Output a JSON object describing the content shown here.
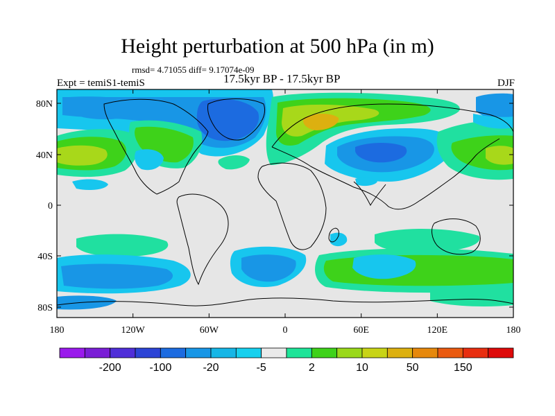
{
  "title": "Height perturbation at 500 hPa (in m)",
  "stats_line": "rmsd= 4.71055 diff= 9.17074e-09",
  "period": "17.5kyr BP - 17.5kyr BP",
  "experiment": "Expt = temiS1-temiS",
  "season": "DJF",
  "lat_ticks": [
    "80N",
    "40N",
    "0",
    "40S",
    "80S"
  ],
  "lon_ticks": [
    "180",
    "120W",
    "60W",
    "0",
    "60E",
    "120E",
    "180"
  ],
  "colorbar": {
    "colors": [
      "#9a1aec",
      "#7a1ed6",
      "#4f2ed8",
      "#2c44d6",
      "#1c6be0",
      "#1896e6",
      "#16b6e6",
      "#17d0ee",
      "#eaeaea",
      "#1ee498",
      "#3ed21a",
      "#9ad81a",
      "#c8d416",
      "#dcb010",
      "#e6880c",
      "#ea5a10",
      "#e82e10",
      "#de0a0a"
    ],
    "labels": [
      "-200",
      "-100",
      "-20",
      "-5",
      "2",
      "10",
      "50",
      "150"
    ]
  },
  "field_colors": {
    "background": "#e6e6e6",
    "light_blue": "#17c6ee",
    "mid_blue": "#1896e6",
    "dark_blue": "#1c6be0",
    "teal": "#20e0a0",
    "green": "#3ed21a",
    "yellow_green": "#a8d81a",
    "yellow": "#c8c416",
    "orange": "#dcb010",
    "contour_line": "#000000"
  }
}
